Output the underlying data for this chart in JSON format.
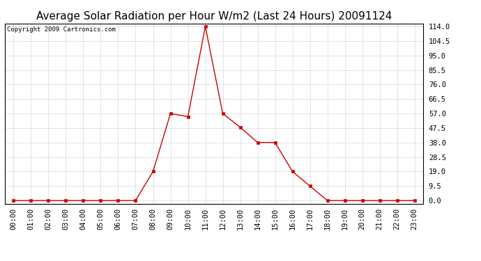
{
  "title": "Average Solar Radiation per Hour W/m2 (Last 24 Hours) 20091124",
  "copyright_text": "Copyright 2009 Cartronics.com",
  "x_labels": [
    "00:00",
    "01:00",
    "02:00",
    "03:00",
    "04:00",
    "05:00",
    "06:00",
    "07:00",
    "08:00",
    "09:00",
    "10:00",
    "11:00",
    "12:00",
    "13:00",
    "14:00",
    "15:00",
    "16:00",
    "17:00",
    "18:00",
    "19:00",
    "20:00",
    "21:00",
    "22:00",
    "23:00"
  ],
  "y_values": [
    0.0,
    0.0,
    0.0,
    0.0,
    0.0,
    0.0,
    0.0,
    0.0,
    19.0,
    57.0,
    55.0,
    114.0,
    57.0,
    48.0,
    38.0,
    38.0,
    19.0,
    9.5,
    0.0,
    0.0,
    0.0,
    0.0,
    0.0,
    0.0
  ],
  "y_ticks": [
    0.0,
    9.5,
    19.0,
    28.5,
    38.0,
    47.5,
    57.0,
    66.5,
    76.0,
    85.5,
    95.0,
    104.5,
    114.0
  ],
  "ylim_min": -2,
  "ylim_max": 116,
  "line_color": "#cc0000",
  "marker": "s",
  "marker_size": 2.5,
  "background_color": "#ffffff",
  "plot_background": "#ffffff",
  "grid_color": "#bbbbbb",
  "title_fontsize": 11,
  "copyright_fontsize": 6.5,
  "tick_fontsize": 7.5,
  "border_color": "#000000"
}
